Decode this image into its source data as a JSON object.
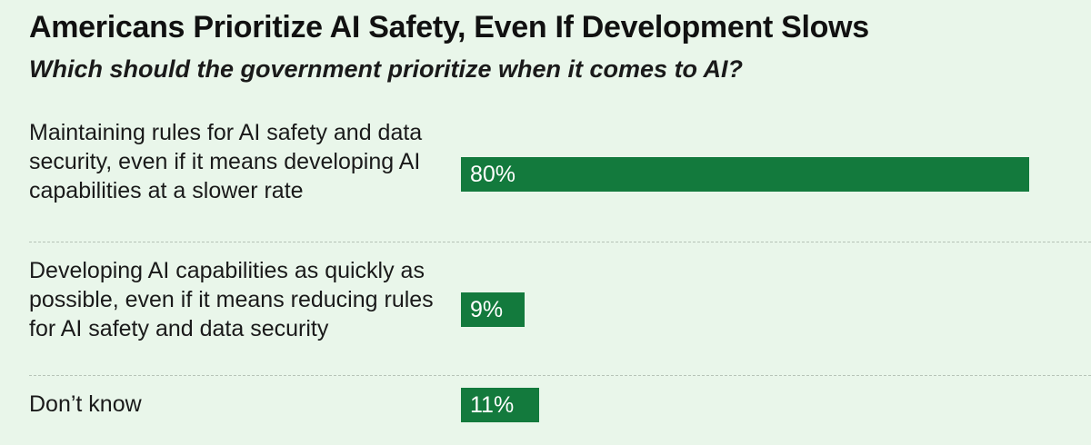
{
  "chart_data": {
    "type": "bar",
    "orientation": "horizontal",
    "title": "Americans Prioritize AI Safety, Even If Development Slows",
    "subtitle": "Which should the government prioritize when it comes to AI?",
    "categories": [
      "Maintaining rules for AI safety and data security, even if it means developing AI capabilities at a slower rate",
      "Developing AI capabilities as quickly as possible, even if it means reducing rules for AI safety and data security",
      "Don’t know"
    ],
    "values": [
      80,
      9,
      11
    ],
    "value_labels": [
      "80%",
      "9%",
      "11%"
    ],
    "xlim": [
      0,
      80
    ],
    "grid": false,
    "legend": "none",
    "bar_color": "#137a3d"
  }
}
